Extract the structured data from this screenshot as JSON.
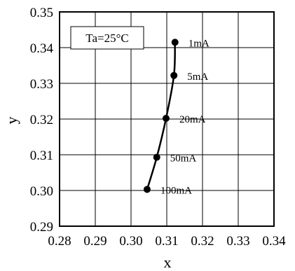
{
  "chart_data": {
    "type": "line",
    "annotation": "Ta=25°C",
    "xlabel": "x",
    "ylabel": "y",
    "xlim": [
      0.28,
      0.34
    ],
    "ylim": [
      0.29,
      0.35
    ],
    "x_ticks": [
      "0.28",
      "0.29",
      "0.30",
      "0.31",
      "0.32",
      "0.33",
      "0.34"
    ],
    "y_ticks": [
      "0.29",
      "0.30",
      "0.31",
      "0.32",
      "0.33",
      "0.34",
      "0.35"
    ],
    "grid": true,
    "line_color": "#000000",
    "series": [
      {
        "points": [
          {
            "x": 0.3123,
            "y": 0.3415,
            "label": "1mA"
          },
          {
            "x": 0.312,
            "y": 0.3322,
            "label": "5mA"
          },
          {
            "x": 0.3098,
            "y": 0.3202,
            "label": "20mA"
          },
          {
            "x": 0.3072,
            "y": 0.3093,
            "label": "50mA"
          },
          {
            "x": 0.3045,
            "y": 0.3003,
            "label": "100mA"
          }
        ]
      }
    ]
  }
}
